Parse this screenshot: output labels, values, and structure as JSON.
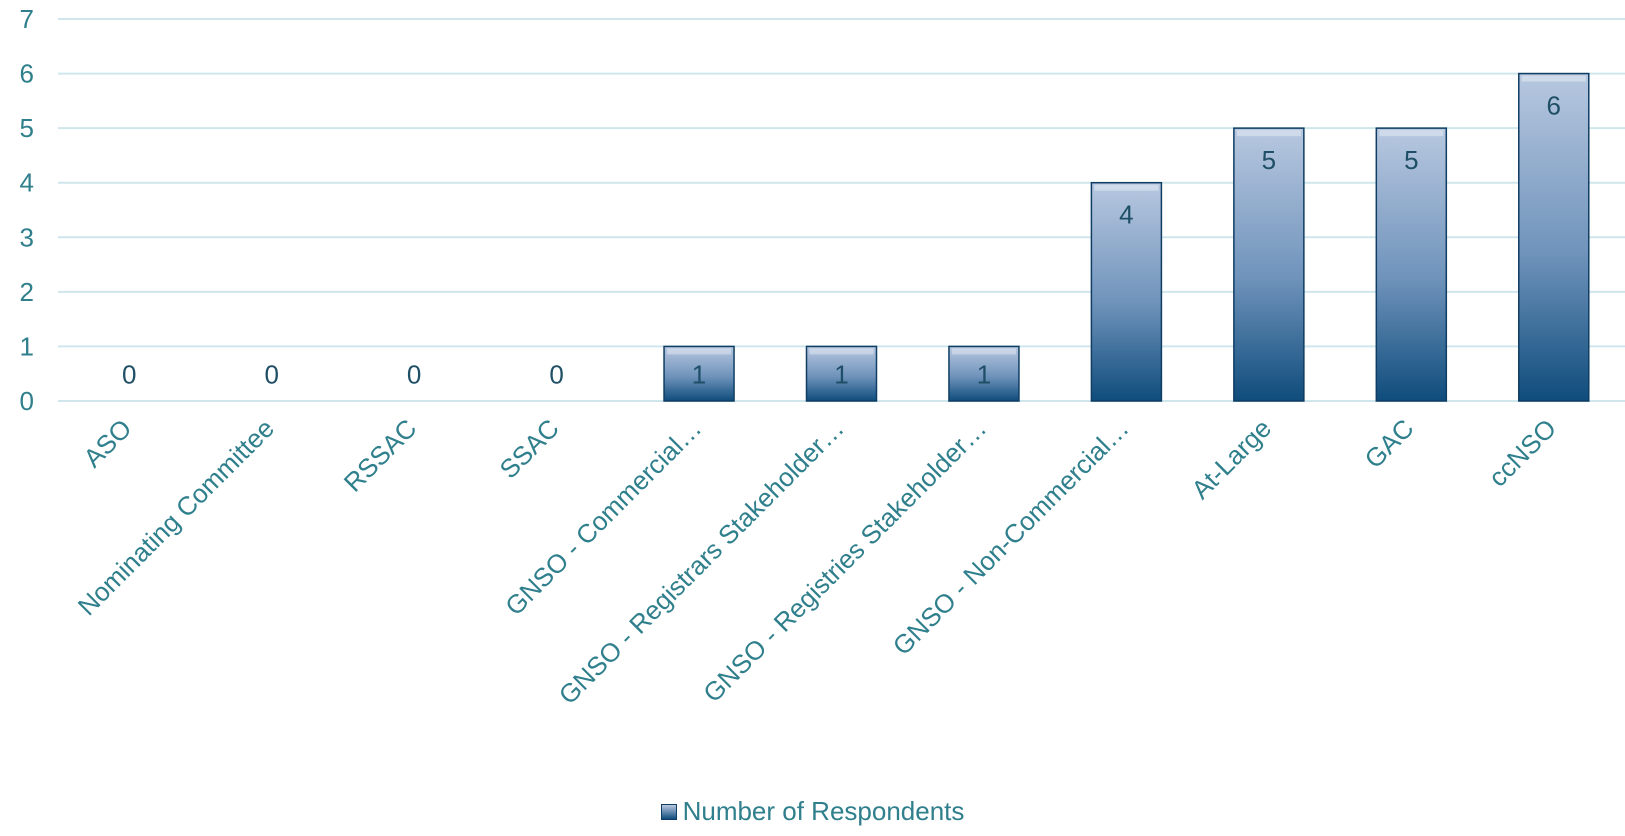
{
  "chart_data": {
    "type": "bar",
    "categories": [
      "ASO",
      "Nominating Committee",
      "RSSAC",
      "SSAC",
      "GNSO - Commercial…",
      "GNSO - Registrars Stakeholder…",
      "GNSO - Registries Stakeholder…",
      "GNSO - Non-Commercial…",
      "At-Large",
      "GAC",
      "ccNSO"
    ],
    "series": [
      {
        "name": "Number of Respondents",
        "values": [
          0,
          0,
          0,
          0,
          1,
          1,
          1,
          4,
          5,
          5,
          6
        ]
      }
    ],
    "ylim": [
      0,
      7
    ],
    "yticks": [
      0,
      1,
      2,
      3,
      4,
      5,
      6,
      7
    ],
    "grid": true,
    "legend": "bottom",
    "colors": {
      "bar_top": "#b8c8e0",
      "bar_bottom": "#0f4c7c",
      "grid": "#cfe6ec",
      "text": "#2f7f8c"
    }
  }
}
